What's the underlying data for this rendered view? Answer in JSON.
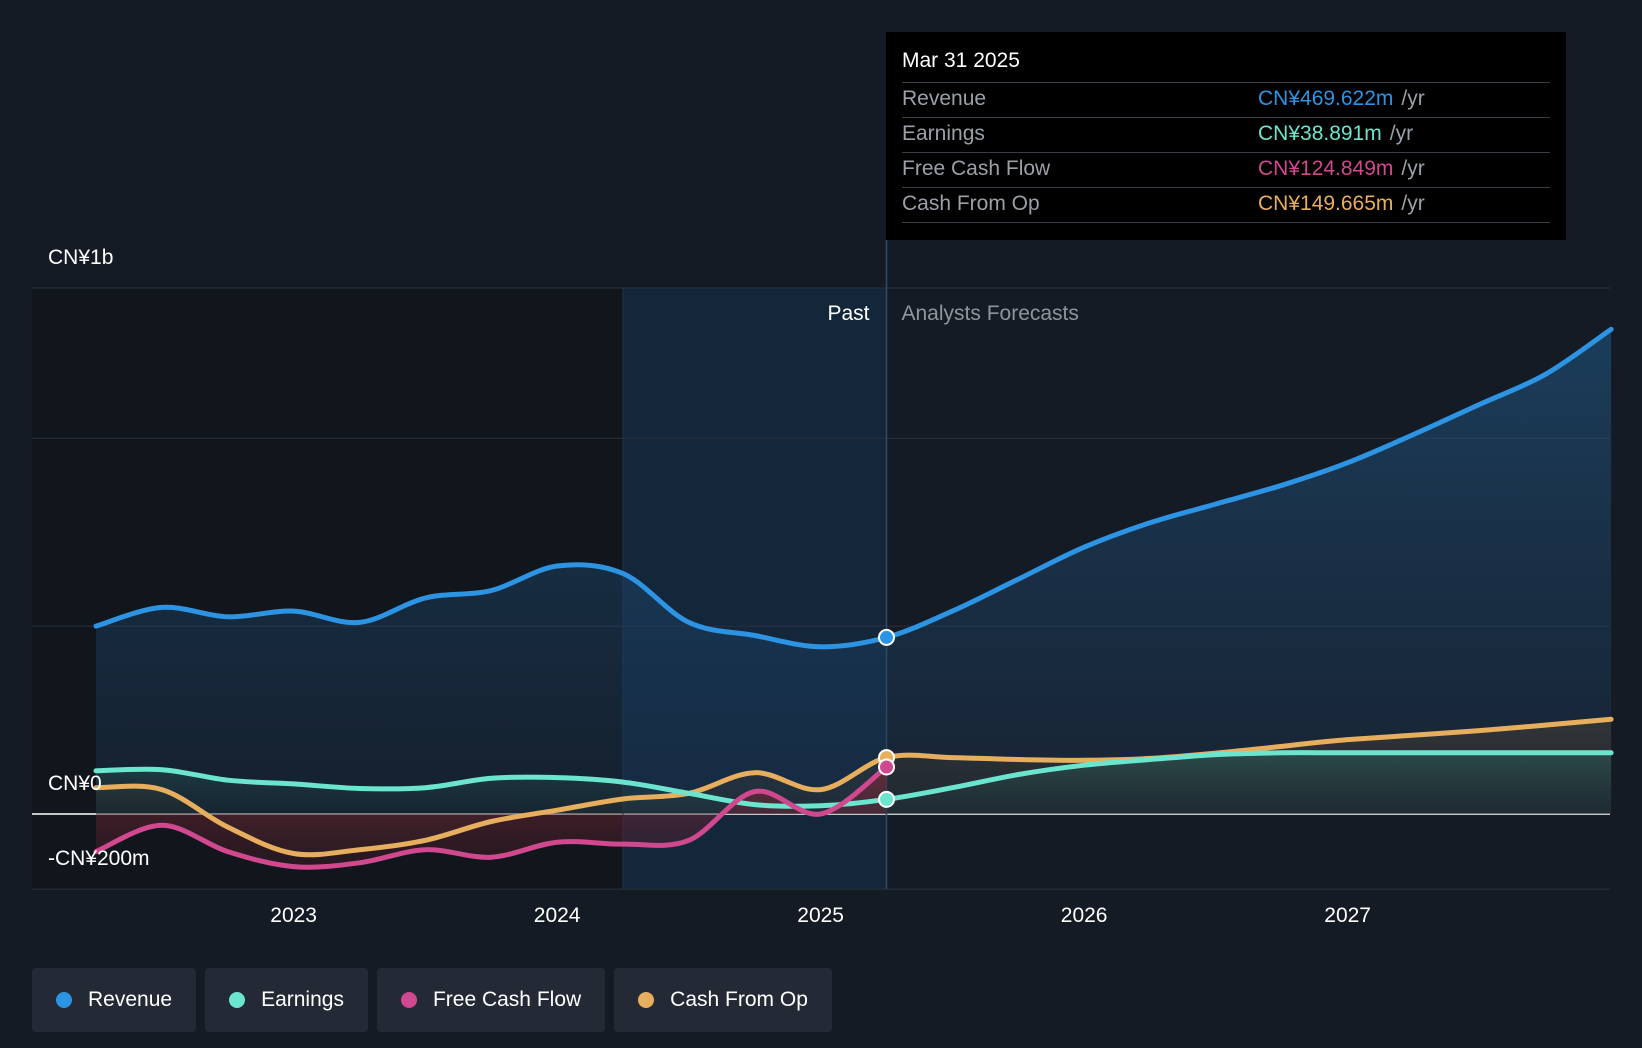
{
  "chart_data": {
    "type": "line",
    "currency": "CNY",
    "y_unit": "CN¥ millions",
    "ylim": [
      -200,
      1400
    ],
    "xlim": [
      2022.25,
      2028.0
    ],
    "x_ticks": [
      2023,
      2024,
      2025,
      2026,
      2027
    ],
    "x_tick_labels": [
      "2023",
      "2024",
      "2025",
      "2026",
      "2027"
    ],
    "y_tick_labels": [
      {
        "value": 1400,
        "label": "CN¥1b"
      },
      {
        "value": 0,
        "label": "CN¥0"
      },
      {
        "value": -200,
        "label": "-CN¥200m"
      }
    ],
    "y_gridlines": [
      1400,
      1000,
      500,
      0,
      -200
    ],
    "past_label": "Past",
    "forecast_label": "Analysts Forecasts",
    "divider_x": 2025.25,
    "shaded_past_start": 2024.25,
    "series": [
      {
        "name": "Revenue",
        "color": "#2d93e3",
        "x": [
          2022.25,
          2022.5,
          2022.75,
          2023.0,
          2023.25,
          2023.5,
          2023.75,
          2024.0,
          2024.25,
          2024.5,
          2024.75,
          2025.0,
          2025.25,
          2025.5,
          2025.75,
          2026.0,
          2026.25,
          2026.5,
          2026.75,
          2027.0,
          2027.25,
          2027.5,
          2027.75,
          2028.0
        ],
        "values": [
          500,
          550,
          525,
          540,
          510,
          575,
          595,
          660,
          640,
          510,
          475,
          445,
          470,
          540,
          625,
          710,
          775,
          825,
          875,
          935,
          1010,
          1090,
          1170,
          1290
        ]
      },
      {
        "name": "Earnings",
        "color": "#6ce5cf",
        "x": [
          2022.25,
          2022.5,
          2022.75,
          2023.0,
          2023.25,
          2023.5,
          2023.75,
          2024.0,
          2024.25,
          2024.5,
          2024.75,
          2025.0,
          2025.25,
          2025.5,
          2025.75,
          2026.0,
          2026.25,
          2026.5,
          2026.75,
          2027.0,
          2027.5,
          2028.0
        ],
        "values": [
          115,
          118,
          90,
          80,
          68,
          70,
          95,
          97,
          85,
          55,
          25,
          22,
          39,
          70,
          105,
          130,
          145,
          158,
          163,
          163,
          163,
          163
        ]
      },
      {
        "name": "Free Cash Flow",
        "color": "#d0488e",
        "x": [
          2022.25,
          2022.5,
          2022.75,
          2023.0,
          2023.25,
          2023.5,
          2023.75,
          2024.0,
          2024.25,
          2024.5,
          2024.75,
          2025.0,
          2025.25
        ],
        "values": [
          -100,
          -30,
          -100,
          -140,
          -130,
          -95,
          -115,
          -75,
          -80,
          -70,
          60,
          0,
          125
        ]
      },
      {
        "name": "Cash From Op",
        "color": "#e7ae5e",
        "x": [
          2022.25,
          2022.5,
          2022.75,
          2023.0,
          2023.25,
          2023.5,
          2023.75,
          2024.0,
          2024.25,
          2024.5,
          2024.75,
          2025.0,
          2025.25,
          2025.5,
          2025.75,
          2026.0,
          2026.25,
          2026.5,
          2026.75,
          2027.0,
          2027.5,
          2028.0
        ],
        "values": [
          70,
          65,
          -35,
          -105,
          -95,
          -70,
          -20,
          10,
          40,
          55,
          110,
          65,
          150,
          150,
          145,
          143,
          148,
          162,
          180,
          198,
          222,
          252
        ]
      }
    ],
    "markers": [
      {
        "series": "Revenue",
        "x": 2025.25,
        "value": 470
      },
      {
        "series": "Cash From Op",
        "x": 2025.25,
        "value": 150
      },
      {
        "series": "Free Cash Flow",
        "x": 2025.25,
        "value": 125
      },
      {
        "series": "Earnings",
        "x": 2025.25,
        "value": 39
      }
    ]
  },
  "tooltip": {
    "date": "Mar 31 2025",
    "rows": [
      {
        "label": "Revenue",
        "value": "CN¥469.622m",
        "unit": "/yr",
        "color": "#2d93e3"
      },
      {
        "label": "Earnings",
        "value": "CN¥38.891m",
        "unit": "/yr",
        "color": "#6ce5cf"
      },
      {
        "label": "Free Cash Flow",
        "value": "CN¥124.849m",
        "unit": "/yr",
        "color": "#d0488e"
      },
      {
        "label": "Cash From Op",
        "value": "CN¥149.665m",
        "unit": "/yr",
        "color": "#e7ae5e"
      }
    ]
  },
  "legend": [
    {
      "label": "Revenue",
      "color": "#2d93e3"
    },
    {
      "label": "Earnings",
      "color": "#6ce5cf"
    },
    {
      "label": "Free Cash Flow",
      "color": "#d0488e"
    },
    {
      "label": "Cash From Op",
      "color": "#e7ae5e"
    }
  ]
}
